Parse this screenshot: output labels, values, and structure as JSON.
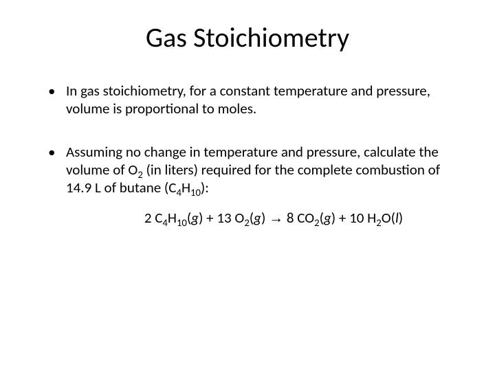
{
  "background_color": "#ffffff",
  "text_color": "#000000",
  "title": {
    "text": "Gas Stoichiometry",
    "fontsize": 40,
    "align": "center"
  },
  "body_fontsize": 21,
  "bullets": [
    {
      "text": "In gas stoichiometry, for a constant temperature and pressure, volume is proportional to moles."
    },
    {
      "prefix": "Assuming no change in temperature and pressure, calculate the volume of O",
      "o2_sub": "2",
      "mid": " (in liters) required for the complete combustion of 14.9 L of butane (C",
      "c_sub": "4",
      "h": "H",
      "h_sub": "10",
      "suffix": "):"
    }
  ],
  "equation": {
    "c1": "2 C",
    "c1_sub": "4",
    "h1": "H",
    "h1_sub": "10",
    "p1_open": "(",
    "g": "g",
    "p1_close": ") + 13 O",
    "o_sub": "2",
    "p2_open": "(",
    "p2_close": ") ",
    "arrow": "→",
    "co2": " 8 CO",
    "co2_sub": "2",
    "p3_open": "(",
    "p3_close": ") + 10 H",
    "h2_sub": "2",
    "o": "O(",
    "l": "l",
    "end": ")"
  }
}
